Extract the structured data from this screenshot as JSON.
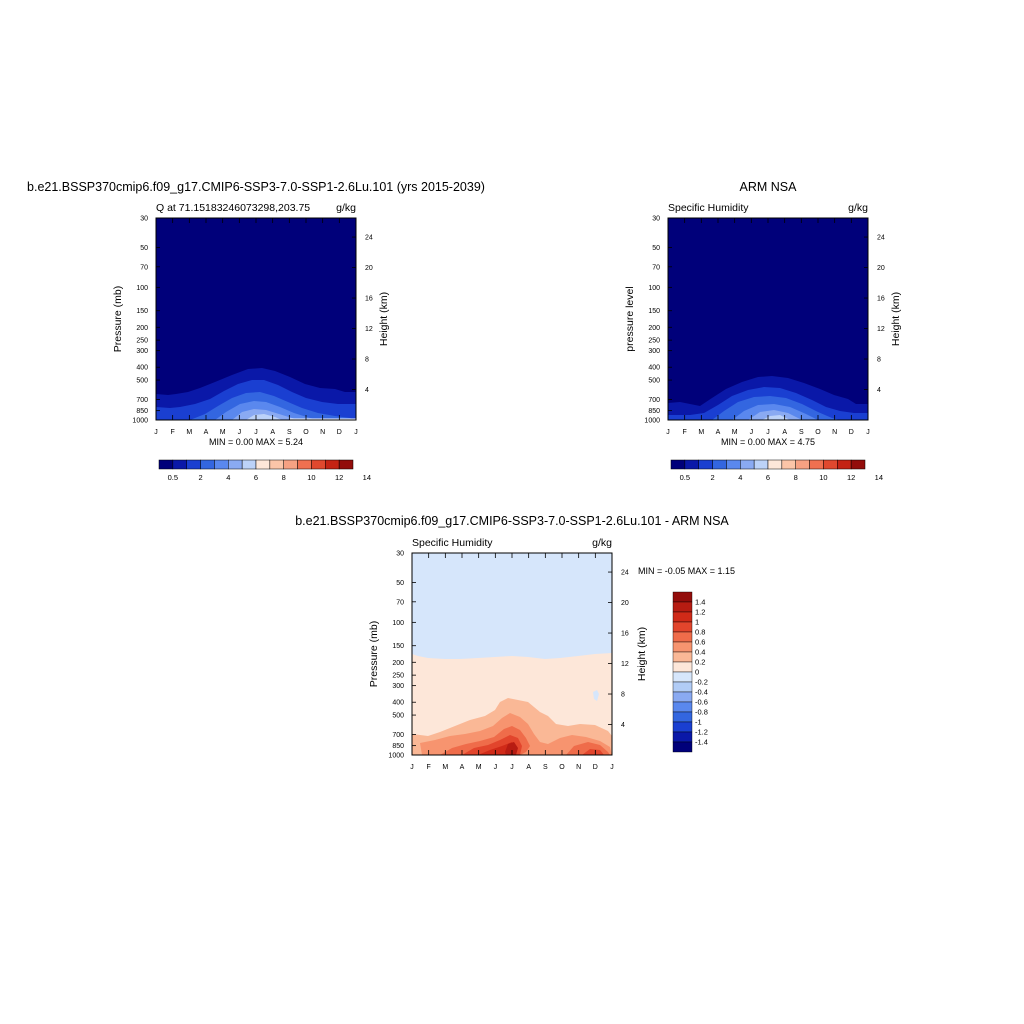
{
  "figure": {
    "panels": [
      {
        "title": "b.e21.BSSP370cmip6.f09_g17.CMIP6-SSP3-7.0-SSP1-2.6Lu.101 (yrs 2015-2039)",
        "left_label": "Q at 71.15183246073298,203.75",
        "right_label": "g/kg",
        "ylabel": "Pressure (mb)",
        "ylabel_right": "Height (km)",
        "minmax": "MIN =   0.00 MAX =   5.24"
      },
      {
        "title": "ARM NSA",
        "left_label": "Specific Humidity",
        "right_label": "g/kg",
        "ylabel": "pressure level",
        "ylabel_right": "Height (km)",
        "minmax": "MIN =   0.00 MAX =   4.75"
      },
      {
        "title": "b.e21.BSSP370cmip6.f09_g17.CMIP6-SSP3-7.0-SSP1-2.6Lu.101 - ARM NSA",
        "left_label": "Specific Humidity",
        "right_label": "g/kg",
        "ylabel": "Pressure (mb)",
        "ylabel_right": "Height (km)",
        "minmax": "MIN =  -0.05 MAX =   1.15"
      }
    ],
    "colors": {
      "abs_scale": [
        "#00007a",
        "#0a18a8",
        "#1a3fd1",
        "#3366e0",
        "#5a88ee",
        "#8aaaf2",
        "#bcd2f8",
        "#fde7d9",
        "#fbc5a8",
        "#f6a182",
        "#ef7050",
        "#e0482e",
        "#c42314",
        "#930d0b"
      ],
      "diff_scale": [
        "#930d0b",
        "#b71c12",
        "#d02a18",
        "#e2452c",
        "#ef6c4a",
        "#f7946f",
        "#fab896",
        "#fde7d9",
        "#d6e6fb",
        "#b1ccf6",
        "#8aaaf2",
        "#5a88ee",
        "#3366e0",
        "#1a3fd1",
        "#0a18a8",
        "#00007a"
      ]
    }
  },
  "chart_data": [
    {
      "type": "heatmap",
      "title": "b.e21.BSSP370cmip6.f09_g17.CMIP6-SSP3-7.0-SSP1-2.6Lu.101 (yrs 2015-2039)",
      "x_ticks": [
        "J",
        "F",
        "M",
        "A",
        "M",
        "J",
        "J",
        "A",
        "S",
        "O",
        "N",
        "D",
        "J"
      ],
      "y_ticks_pressure": [
        "30",
        "50",
        "70",
        "100",
        "150",
        "200",
        "250",
        "300",
        "400",
        "500",
        "700",
        "850",
        "1000"
      ],
      "y_ticks_height": [
        "24",
        "20",
        "16",
        "12",
        "8",
        "4"
      ],
      "ylabel": "Pressure (mb)",
      "ylabel_right": "Height (km)",
      "colorbar_labels": [
        "0.5",
        "2",
        "4",
        "6",
        "8",
        "10",
        "12",
        "14"
      ],
      "min": 0.0,
      "max": 5.24
    },
    {
      "type": "heatmap",
      "title": "ARM NSA",
      "x_ticks": [
        "J",
        "F",
        "M",
        "A",
        "M",
        "J",
        "J",
        "A",
        "S",
        "O",
        "N",
        "D",
        "J"
      ],
      "y_ticks_pressure": [
        "30",
        "50",
        "70",
        "100",
        "150",
        "200",
        "250",
        "300",
        "400",
        "500",
        "700",
        "850",
        "1000"
      ],
      "y_ticks_height": [
        "24",
        "20",
        "16",
        "12",
        "8",
        "4"
      ],
      "ylabel": "pressure level",
      "ylabel_right": "Height (km)",
      "colorbar_labels": [
        "0.5",
        "2",
        "4",
        "6",
        "8",
        "10",
        "12",
        "14"
      ],
      "min": 0.0,
      "max": 4.75
    },
    {
      "type": "heatmap",
      "title": "b.e21.BSSP370cmip6.f09_g17.CMIP6-SSP3-7.0-SSP1-2.6Lu.101 - ARM NSA",
      "x_ticks": [
        "J",
        "F",
        "M",
        "A",
        "M",
        "J",
        "J",
        "A",
        "S",
        "O",
        "N",
        "D",
        "J"
      ],
      "y_ticks_pressure": [
        "30",
        "50",
        "70",
        "100",
        "150",
        "200",
        "250",
        "300",
        "400",
        "500",
        "700",
        "850",
        "1000"
      ],
      "y_ticks_height": [
        "24",
        "20",
        "16",
        "12",
        "8",
        "4"
      ],
      "ylabel": "Pressure (mb)",
      "ylabel_right": "Height (km)",
      "colorbar_labels": [
        "1.4",
        "1.2",
        "1",
        "0.8",
        "0.6",
        "0.4",
        "0.2",
        "0",
        "-0.2",
        "-0.4",
        "-0.6",
        "-0.8",
        "-1",
        "-1.2",
        "-1.4"
      ],
      "min": -0.05,
      "max": 1.15
    }
  ]
}
